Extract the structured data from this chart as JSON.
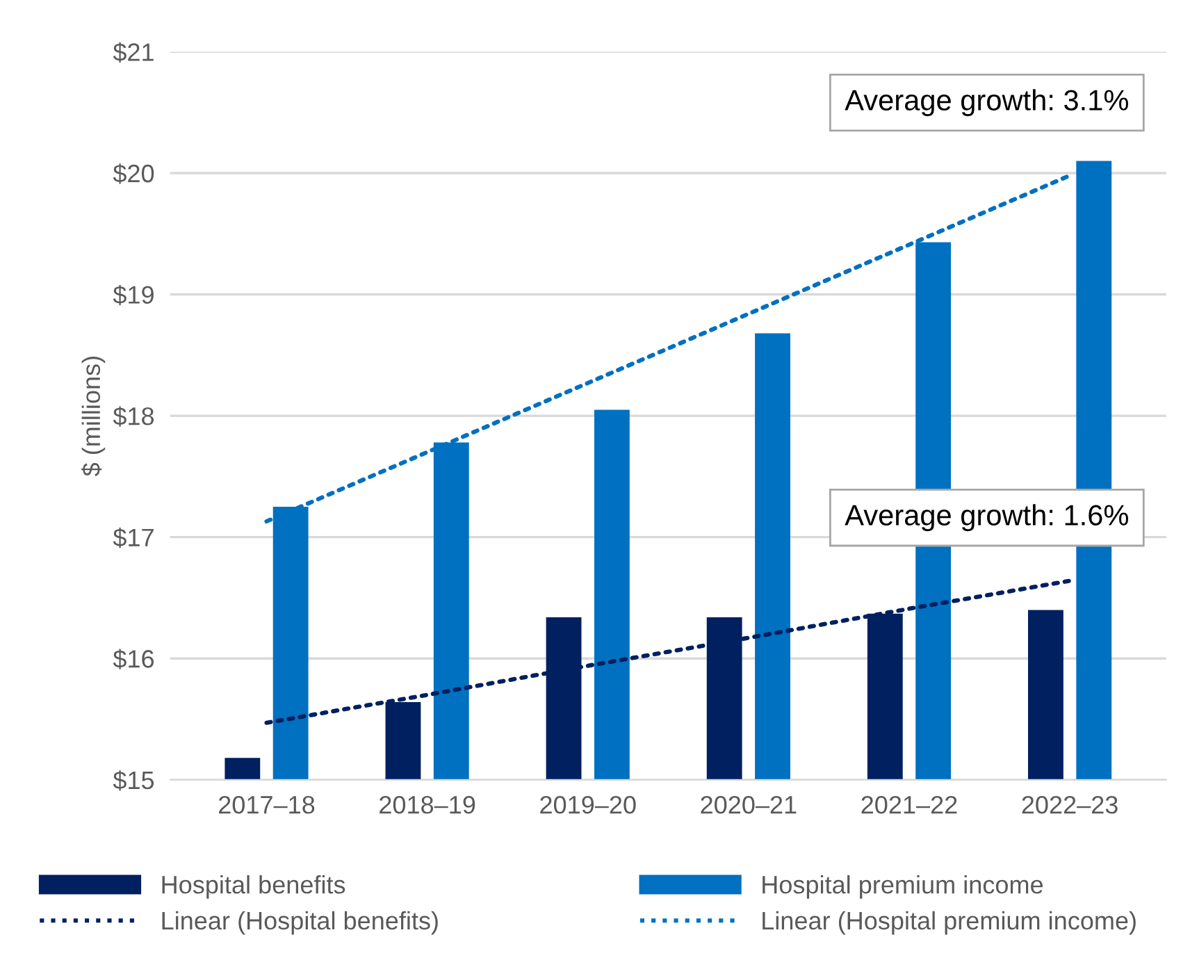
{
  "chart_data": {
    "type": "bar",
    "ylabel": "$ (millions)",
    "categories": [
      "2017–18",
      "2018–19",
      "2019–20",
      "2020–21",
      "2021–22",
      "2022–23"
    ],
    "series": [
      {
        "name": "Hospital benefits",
        "color": "#002060",
        "values": [
          15.18,
          15.64,
          16.34,
          16.34,
          16.37,
          16.4
        ]
      },
      {
        "name": "Hospital premium income",
        "color": "#0070c0",
        "values": [
          17.25,
          17.78,
          18.05,
          18.68,
          19.43,
          20.1
        ]
      },
      {
        "name": "Linear (Hospital benefits)",
        "type": "line",
        "line_style": "dotted",
        "color": "#002060",
        "values": [
          15.47,
          15.7,
          15.94,
          16.17,
          16.41,
          16.64
        ]
      },
      {
        "name": "Linear (Hospital premium income)",
        "type": "line",
        "line_style": "dotted",
        "color": "#0070c0",
        "values": [
          17.13,
          17.7,
          18.27,
          18.84,
          19.41,
          19.98
        ]
      }
    ],
    "ylim": [
      15,
      21
    ],
    "yticks": [
      {
        "value": 15,
        "label": "$15"
      },
      {
        "value": 16,
        "label": "$16"
      },
      {
        "value": 17,
        "label": "$17"
      },
      {
        "value": 18,
        "label": "$18"
      },
      {
        "value": 19,
        "label": "$19"
      },
      {
        "value": 20,
        "label": "$20"
      },
      {
        "value": 21,
        "label": "$21"
      }
    ],
    "grid": "y",
    "legend": "bottom",
    "annotations": [
      "Average growth: 3.1%",
      "Average growth: 1.6%"
    ]
  }
}
